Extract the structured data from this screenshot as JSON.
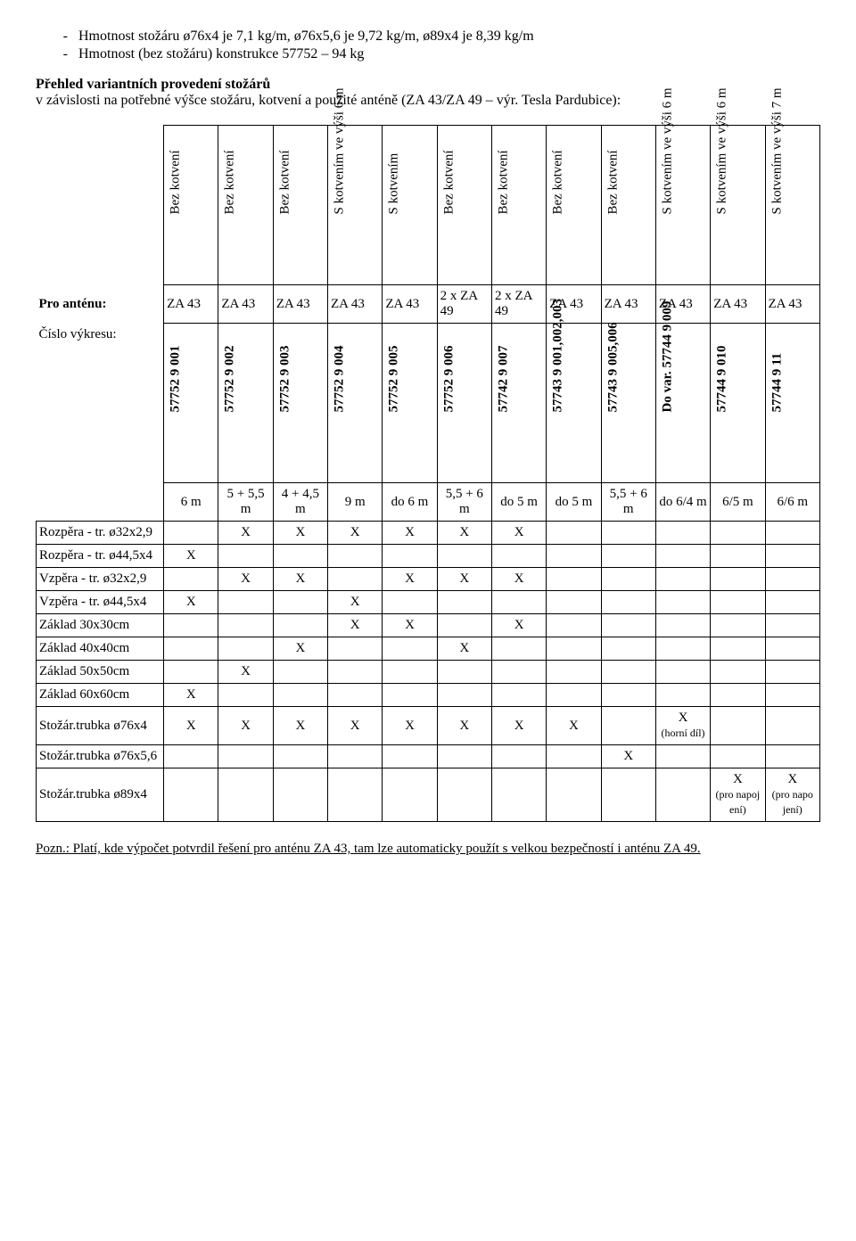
{
  "bullets": {
    "b1": "Hmotnost stožáru  ø76x4 je 7,1 kg/m,  ø76x5,6 je 9,72 kg/m,  ø89x4 je 8,39 kg/m",
    "b2": "Hmotnost  (bez stožáru)  konstrukce 57752 – 94 kg"
  },
  "heading": "Přehled variantních provedení stožárů",
  "subheading": "v závislosti na potřebné výšce stožáru, kotvení a použité anténě (ZA 43/ZA 49 – výr. Tesla Pardubice):",
  "hdr1": {
    "c1": "Bez kotvení",
    "c2": "Bez kotvení",
    "c3": "Bez kotvení",
    "c4": "S kotvením ve výši 6 m",
    "c5": "S kotvením",
    "c6": "Bez kotvení",
    "c7": "Bez kotvení",
    "c8": "Bez kotvení",
    "c9": "Bez kotvení",
    "c10": "S kotvením ve výši 6 m",
    "c11": "S kotvením ve výši 6 m",
    "c12": "S kotvením ve výši 7 m"
  },
  "row_antenna_label": "Pro anténu:",
  "antenna": {
    "c1": "ZA 43",
    "c2": "ZA 43",
    "c3": "ZA 43",
    "c4": "ZA 43",
    "c5": "ZA 43",
    "c6": "2 x ZA 49",
    "c7": "2 x ZA 49",
    "c8": "ZA 43",
    "c9": "ZA 43",
    "c10": "ZA 43",
    "c11": "ZA 43",
    "c12": "ZA 43"
  },
  "row_drawing_label": "Číslo výkresu:",
  "drawings": {
    "c1": "57752 9 001",
    "c2": "57752 9 002",
    "c3": "57752 9 003",
    "c4": "57752 9 004",
    "c5": "57752 9 005",
    "c6": "57752 9 006",
    "c7": "57742 9 007",
    "c8": "57743 9 001,002,003",
    "c9": "57743 9 005,006",
    "c10": "Do var. 57744  9 009",
    "c11": "57744 9 010",
    "c12": "57744 9 11"
  },
  "heights": {
    "c1": "6 m",
    "c2": "5 + 5,5 m",
    "c3": "4 + 4,5 m",
    "c4": "9 m",
    "c5": "do 6 m",
    "c6": "5,5 + 6 m",
    "c7": "do 5 m",
    "c8": "do 5 m",
    "c9": "5,5 + 6 m",
    "c10": "do 6/4 m",
    "c11": "6/5 m",
    "c12": "6/6 m"
  },
  "rows": {
    "r1_label": "Rozpěra  - tr. ø32x2,9",
    "r1": [
      "",
      "X",
      "X",
      "X",
      "X",
      "X",
      "X",
      "",
      "",
      "",
      "",
      ""
    ],
    "r2_label": "Rozpěra  - tr. ø44,5x4",
    "r2": [
      "X",
      "",
      "",
      "",
      "",
      "",
      "",
      "",
      "",
      "",
      "",
      ""
    ],
    "r3_label": "Vzpěra  - tr. ø32x2,9",
    "r3": [
      "",
      "X",
      "X",
      "",
      "X",
      "X",
      "X",
      "",
      "",
      "",
      "",
      ""
    ],
    "r4_label": "Vzpěra  - tr. ø44,5x4",
    "r4": [
      "X",
      "",
      "",
      "X",
      "",
      "",
      "",
      "",
      "",
      "",
      "",
      ""
    ],
    "r5_label": "Základ 30x30cm",
    "r5": [
      "",
      "",
      "",
      "X",
      "X",
      "",
      "X",
      "",
      "",
      "",
      "",
      ""
    ],
    "r6_label": "Základ 40x40cm",
    "r6": [
      "",
      "",
      "X",
      "",
      "",
      "X",
      "",
      "",
      "",
      "",
      "",
      ""
    ],
    "r7_label": "Základ 50x50cm",
    "r7": [
      "",
      "X",
      "",
      "",
      "",
      "",
      "",
      "",
      "",
      "",
      "",
      ""
    ],
    "r8_label": "Základ 60x60cm",
    "r8": [
      "X",
      "",
      "",
      "",
      "",
      "",
      "",
      "",
      "",
      "",
      "",
      ""
    ],
    "r9_label": "Stožár.trubka ø76x4",
    "r9": [
      "X",
      "X",
      "X",
      "X",
      "X",
      "X",
      "X",
      "X",
      "",
      "",
      "",
      ""
    ],
    "r9_c10_main": "X",
    "r9_c10_note": "(horní díl)",
    "r10_label": "Stožár.trubka ø76x5,6",
    "r10": [
      "",
      "",
      "",
      "",
      "",
      "",
      "",
      "",
      "X",
      "",
      "",
      ""
    ],
    "r11_label": "Stožár.trubka ø89x4",
    "r11": [
      "",
      "",
      "",
      "",
      "",
      "",
      "",
      "",
      "",
      "",
      "",
      ""
    ],
    "r11_c11_main": "X",
    "r11_c11_note": "(pro napoj ení)",
    "r11_c12_main": "X",
    "r11_c12_note": "(pro napo jení)"
  },
  "footnote_label": "Pozn.:",
  "footnote_text": " Platí, kde výpočet potvrdil řešení pro anténu ZA 43, tam lze automaticky použít s velkou bezpečností i anténu ZA 49."
}
